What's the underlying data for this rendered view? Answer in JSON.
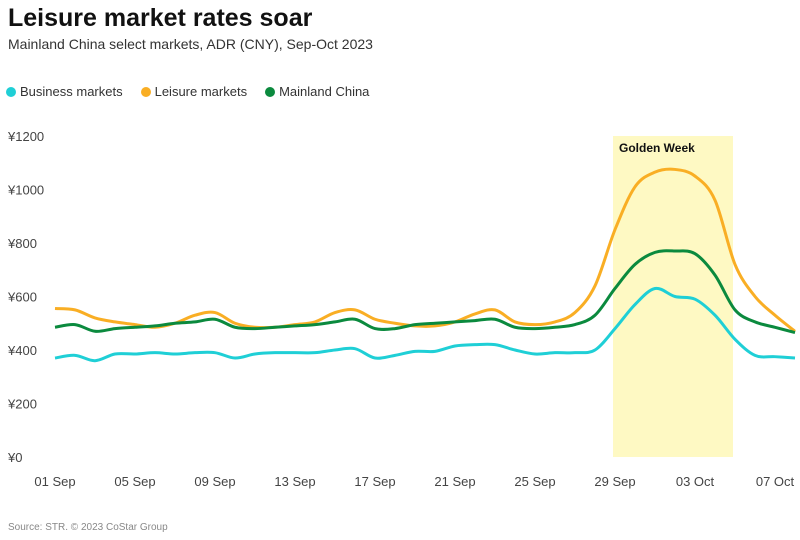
{
  "header": {
    "title": "Leisure market rates soar",
    "subtitle": "Mainland China select markets, ADR (CNY), Sep-Oct 2023"
  },
  "source": "Source: STR. © 2023 CoStar Group",
  "chart_data": {
    "type": "line",
    "title": "Leisure market rates soar",
    "subtitle": "Mainland China select markets, ADR (CNY), Sep-Oct 2023",
    "xlabel": "",
    "ylabel": "ADR (CNY)",
    "ylim": [
      0,
      1200
    ],
    "yticks": [
      0,
      200,
      400,
      600,
      800,
      1000,
      1200
    ],
    "ytick_labels": [
      "¥0",
      "¥200",
      "¥400",
      "¥600",
      "¥800",
      "¥1000",
      "¥1200"
    ],
    "x": [
      "01 Sep",
      "02 Sep",
      "03 Sep",
      "04 Sep",
      "05 Sep",
      "06 Sep",
      "07 Sep",
      "08 Sep",
      "09 Sep",
      "10 Sep",
      "11 Sep",
      "12 Sep",
      "13 Sep",
      "14 Sep",
      "15 Sep",
      "16 Sep",
      "17 Sep",
      "18 Sep",
      "19 Sep",
      "20 Sep",
      "21 Sep",
      "22 Sep",
      "23 Sep",
      "24 Sep",
      "25 Sep",
      "26 Sep",
      "27 Sep",
      "28 Sep",
      "29 Sep",
      "30 Sep",
      "01 Oct",
      "02 Oct",
      "03 Oct",
      "04 Oct",
      "05 Oct",
      "06 Oct",
      "07 Oct",
      "08 Oct"
    ],
    "xtick_labels": [
      "01 Sep",
      "05 Sep",
      "09 Sep",
      "13 Sep",
      "17 Sep",
      "21 Sep",
      "25 Sep",
      "29 Sep",
      "03 Oct",
      "07 Oct"
    ],
    "annotation": {
      "label": "Golden Week",
      "from": "29 Sep",
      "to": "05 Oct",
      "color": "#fef9c3"
    },
    "legend_position": "top-left",
    "grid": false,
    "series": [
      {
        "name": "Business markets",
        "color": "#1fcfd6",
        "values": [
          370,
          380,
          360,
          385,
          385,
          390,
          385,
          390,
          390,
          370,
          385,
          390,
          390,
          390,
          400,
          405,
          370,
          380,
          395,
          395,
          415,
          420,
          420,
          400,
          385,
          390,
          390,
          400,
          480,
          570,
          630,
          600,
          590,
          530,
          440,
          380,
          375,
          370
        ]
      },
      {
        "name": "Leisure markets",
        "color": "#f9ae24",
        "values": [
          555,
          550,
          520,
          505,
          495,
          485,
          500,
          530,
          540,
          500,
          485,
          485,
          495,
          505,
          540,
          550,
          515,
          500,
          490,
          490,
          505,
          535,
          550,
          505,
          495,
          505,
          540,
          640,
          850,
          1010,
          1065,
          1075,
          1050,
          960,
          720,
          600,
          530,
          470
        ]
      },
      {
        "name": "Mainland China",
        "color": "#0b8a3e",
        "values": [
          485,
          495,
          470,
          480,
          485,
          490,
          500,
          505,
          515,
          485,
          480,
          485,
          490,
          495,
          505,
          515,
          480,
          480,
          495,
          500,
          505,
          510,
          515,
          485,
          480,
          485,
          495,
          530,
          630,
          720,
          765,
          770,
          760,
          680,
          550,
          505,
          485,
          465
        ]
      }
    ]
  }
}
